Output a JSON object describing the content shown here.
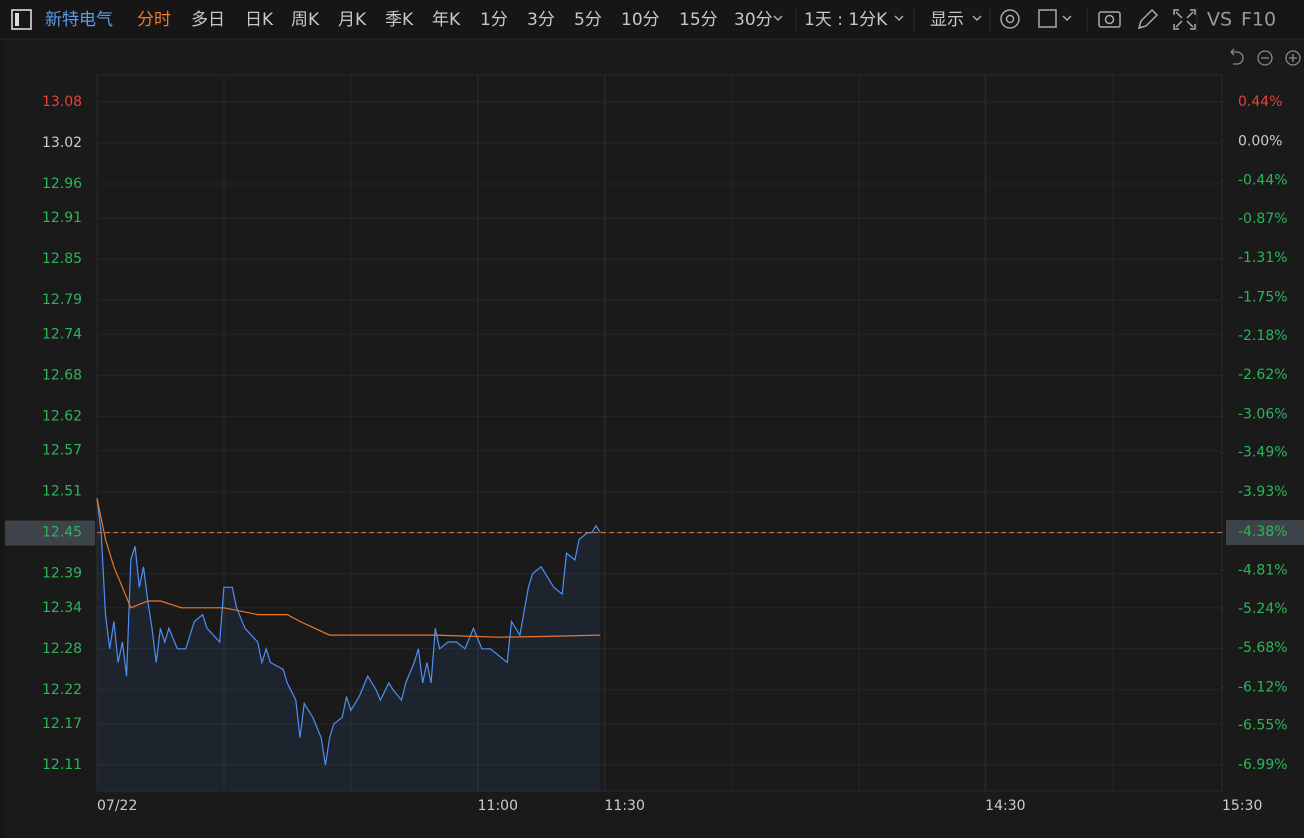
{
  "toolbar": {
    "stock_name": "新特电气",
    "periods": [
      "分时",
      "多日",
      "日K",
      "周K",
      "月K",
      "季K",
      "年K",
      "1分",
      "3分",
      "5分",
      "10分",
      "15分",
      "30分"
    ],
    "active_period": 0,
    "range_select": "1天 : 1分K",
    "display": "显示",
    "compare": "VS",
    "f10": "F10"
  },
  "chart_data": {
    "type": "line",
    "series": [
      {
        "color": "#4c8ff5",
        "x": [
          0,
          1,
          2,
          3,
          4,
          5,
          6,
          7,
          8,
          9,
          10,
          11,
          12,
          13,
          14,
          15,
          16,
          17,
          19,
          21,
          23,
          25,
          26,
          29,
          30,
          32,
          33,
          35,
          38,
          39,
          40,
          41,
          44,
          45,
          47,
          48,
          49,
          51,
          53,
          54,
          55,
          56,
          58,
          59,
          60,
          62,
          64,
          66,
          67,
          69,
          70,
          72,
          73,
          75,
          76,
          77,
          78,
          79,
          80,
          81,
          83,
          85,
          87,
          89,
          91,
          93,
          95,
          97,
          98,
          100,
          102,
          103,
          105,
          106,
          108,
          110,
          111,
          113,
          114,
          116,
          117,
          118,
          119
        ],
        "values": [
          12.5,
          12.45,
          12.33,
          12.28,
          12.32,
          12.26,
          12.29,
          12.24,
          12.41,
          12.43,
          12.37,
          12.4,
          12.35,
          12.31,
          12.26,
          12.31,
          12.29,
          12.31,
          12.28,
          12.28,
          12.32,
          12.33,
          12.31,
          12.29,
          12.37,
          12.37,
          12.34,
          12.31,
          12.29,
          12.26,
          12.28,
          12.26,
          12.25,
          12.23,
          12.205,
          12.15,
          12.2,
          12.18,
          12.15,
          12.11,
          12.15,
          12.17,
          12.18,
          12.21,
          12.19,
          12.21,
          12.24,
          12.22,
          12.205,
          12.23,
          12.22,
          12.205,
          12.23,
          12.26,
          12.28,
          12.23,
          12.26,
          12.23,
          12.31,
          12.28,
          12.29,
          12.29,
          12.28,
          12.31,
          12.28,
          12.28,
          12.27,
          12.26,
          12.32,
          12.3,
          12.37,
          12.39,
          12.4,
          12.39,
          12.37,
          12.36,
          12.42,
          12.41,
          12.44,
          12.45,
          12.45,
          12.46,
          12.45
        ]
      },
      {
        "color": "#e8782c",
        "x": [
          0,
          2,
          4,
          6,
          8,
          12,
          15,
          20,
          30,
          38,
          45,
          48,
          55,
          65,
          80,
          95,
          105,
          119
        ],
        "values": [
          12.5,
          12.44,
          12.4,
          12.37,
          12.34,
          12.35,
          12.35,
          12.34,
          12.34,
          12.33,
          12.33,
          12.32,
          12.3,
          12.3,
          12.3,
          12.297,
          12.298,
          12.3
        ]
      }
    ],
    "last_price": 12.45,
    "xlim": [
      0,
      266
    ],
    "xticks": [
      {
        "value": 0,
        "label": "07/22"
      },
      {
        "value": 90,
        "label": "11:00"
      },
      {
        "value": 120,
        "label": "11:30"
      },
      {
        "value": 210,
        "label": "14:30"
      },
      {
        "value": 266,
        "label": "15:30"
      }
    ],
    "ylim": [
      12.11,
      13.08
    ],
    "yticks": [
      13.08,
      13.02,
      12.96,
      12.91,
      12.85,
      12.79,
      12.74,
      12.68,
      12.62,
      12.57,
      12.51,
      12.45,
      12.39,
      12.34,
      12.28,
      12.22,
      12.17,
      12.11
    ],
    "y2lim": [
      -6.99,
      0.44
    ],
    "y2ticks": [
      {
        "value": 0.44,
        "label": "0.44%"
      },
      {
        "value": 0,
        "label": "0.00%"
      },
      {
        "value": -0.44,
        "label": "-0.44%"
      },
      {
        "value": -0.87,
        "label": "-0.87%"
      },
      {
        "value": -1.31,
        "label": "-1.31%"
      },
      {
        "value": -1.75,
        "label": "-1.75%"
      },
      {
        "value": -2.18,
        "label": "-2.18%"
      },
      {
        "value": -2.62,
        "label": "-2.62%"
      },
      {
        "value": -3.06,
        "label": "-3.06%"
      },
      {
        "value": -3.49,
        "label": "-3.49%"
      },
      {
        "value": -3.93,
        "label": "-3.93%"
      },
      {
        "value": -4.38,
        "label": "-4.38%"
      },
      {
        "value": -4.81,
        "label": "-4.81%"
      },
      {
        "value": -5.24,
        "label": "-5.24%"
      },
      {
        "value": -5.68,
        "label": "-5.68%"
      },
      {
        "value": -6.12,
        "label": "-6.12%"
      },
      {
        "value": -6.55,
        "label": "-6.55%"
      },
      {
        "value": -6.99,
        "label": "-6.99%"
      }
    ],
    "grid": true
  }
}
